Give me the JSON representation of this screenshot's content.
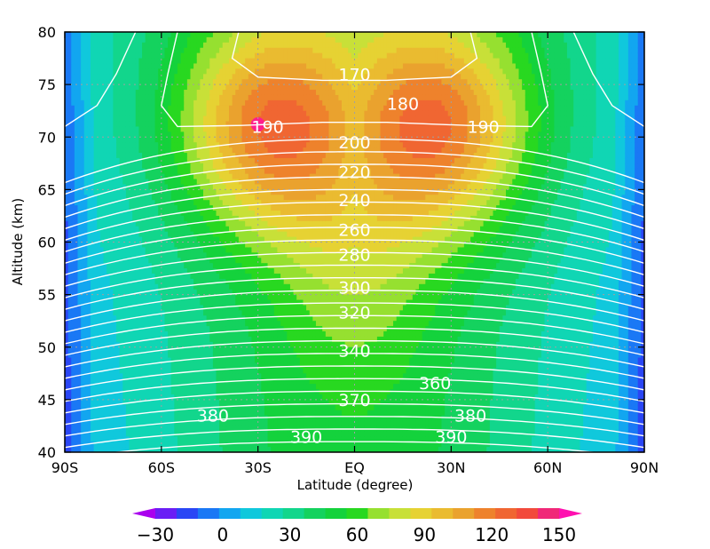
{
  "chart_data": {
    "type": "heatmap",
    "title": "",
    "xlabel": "Latitude (degree)",
    "ylabel": "Altitude (km)",
    "xlim": [
      -90,
      90
    ],
    "ylim": [
      40,
      80
    ],
    "x_ticks": [
      {
        "value": -90,
        "label": "90S"
      },
      {
        "value": -60,
        "label": "60S"
      },
      {
        "value": -30,
        "label": "30S"
      },
      {
        "value": 0,
        "label": "EQ"
      },
      {
        "value": 30,
        "label": "30N"
      },
      {
        "value": 60,
        "label": "60N"
      },
      {
        "value": 90,
        "label": "90N"
      }
    ],
    "y_ticks": [
      {
        "value": 40,
        "label": "40"
      },
      {
        "value": 45,
        "label": "45"
      },
      {
        "value": 50,
        "label": "50"
      },
      {
        "value": 55,
        "label": "55"
      },
      {
        "value": 60,
        "label": "60"
      },
      {
        "value": 65,
        "label": "65"
      },
      {
        "value": 70,
        "label": "70"
      },
      {
        "value": 75,
        "label": "75"
      },
      {
        "value": 80,
        "label": "80"
      }
    ],
    "grid": true,
    "shading": {
      "field": "zonal wind",
      "levels": [
        -30,
        -20,
        -10,
        0,
        10,
        20,
        30,
        40,
        50,
        60,
        70,
        80,
        90,
        100,
        110,
        120,
        130,
        140,
        150
      ],
      "colors": [
        "#aa00ee",
        "#6a1ef5",
        "#2a46f5",
        "#1a78f5",
        "#12a6f0",
        "#10c8dc",
        "#10d6b4",
        "#12d68c",
        "#14d25e",
        "#14d23c",
        "#28d820",
        "#96e030",
        "#c8e038",
        "#e6d233",
        "#eabb30",
        "#eaa22e",
        "#ee822c",
        "#f06632",
        "#f24a3c",
        "#f02878",
        "#ff10b0"
      ],
      "colorbar": {
        "position": "bottom",
        "extend": "both",
        "tick_labels": [
          {
            "value": -30,
            "label": "−30"
          },
          {
            "value": 0,
            "label": "0"
          },
          {
            "value": 30,
            "label": "30"
          },
          {
            "value": 60,
            "label": "60"
          },
          {
            "value": 90,
            "label": "90"
          },
          {
            "value": 120,
            "label": "120"
          },
          {
            "value": 150,
            "label": "150"
          }
        ]
      },
      "max_marker": {
        "lat": -30,
        "alt": 71.2,
        "color": "#ff1e8c"
      }
    },
    "contours": {
      "color": "#ffffff",
      "labels": [
        {
          "text": "170",
          "lat": 0,
          "alt": 76.0
        },
        {
          "text": "180",
          "lat": 15,
          "alt": 73.2
        },
        {
          "text": "190",
          "lat": -27,
          "alt": 71.0
        },
        {
          "text": "190",
          "lat": 40,
          "alt": 71.0
        },
        {
          "text": "200",
          "lat": 0,
          "alt": 69.5
        },
        {
          "text": "220",
          "lat": 0,
          "alt": 66.7
        },
        {
          "text": "240",
          "lat": 0,
          "alt": 64.0
        },
        {
          "text": "260",
          "lat": 0,
          "alt": 61.2
        },
        {
          "text": "280",
          "lat": 0,
          "alt": 58.8
        },
        {
          "text": "300",
          "lat": 0,
          "alt": 55.7
        },
        {
          "text": "320",
          "lat": 0,
          "alt": 53.3
        },
        {
          "text": "340",
          "lat": 0,
          "alt": 49.7
        },
        {
          "text": "360",
          "lat": 25,
          "alt": 46.6
        },
        {
          "text": "370",
          "lat": 0,
          "alt": 45.0
        },
        {
          "text": "380",
          "lat": -44,
          "alt": 43.5
        },
        {
          "text": "380",
          "lat": 36,
          "alt": 43.5
        },
        {
          "text": "390",
          "lat": -15,
          "alt": 41.5
        },
        {
          "text": "390",
          "lat": 30,
          "alt": 41.5
        }
      ]
    }
  }
}
